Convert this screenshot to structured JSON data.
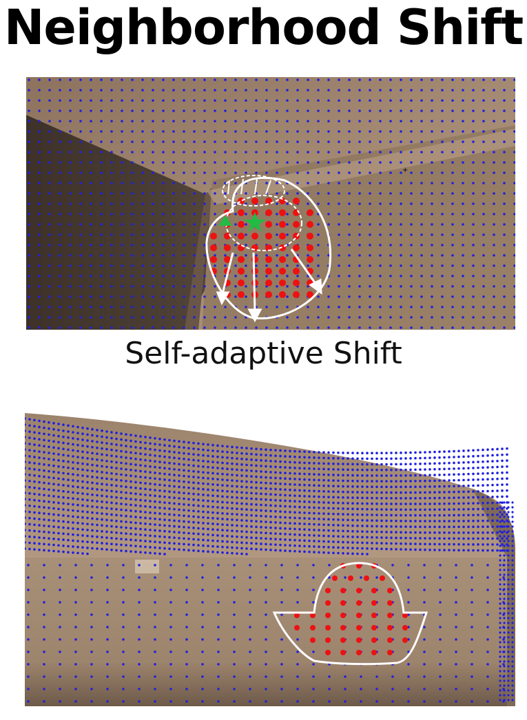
{
  "title": "Neighborhood Shift",
  "caption": "Self-adaptive Shift",
  "colors": {
    "surface": "#a48a73",
    "grid_points": "#1f1fe0",
    "neighborhood_points": "#ee1111",
    "outline": "#ffffff",
    "marker": "#22bb44"
  },
  "icons": [
    "star-icon",
    "triangle-icon",
    "arrow-icon"
  ]
}
